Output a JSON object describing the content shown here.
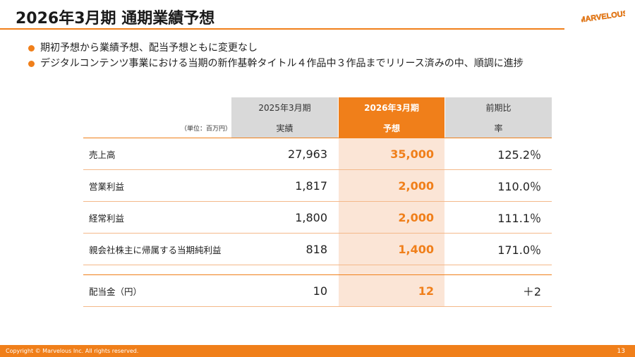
{
  "header": {
    "title": "2026年3月期 通期業績予想",
    "logo_text": "MARVELOUS"
  },
  "bullets": [
    "期初予想から業績予想、配当予想ともに変更なし",
    "デジタルコンテンツ事業における当期の新作基幹タイトル４作品中３作品までリリース済みの中、順調に進捗"
  ],
  "table": {
    "unit_label": "（単位：百万円）",
    "columns": [
      {
        "period": "2025年3月期",
        "sub": "実績"
      },
      {
        "period": "2026年3月期",
        "sub": "予想"
      },
      {
        "period": "前期比",
        "sub": "率"
      }
    ],
    "rows": [
      {
        "label": "売上高",
        "actual": "27,963",
        "forecast": "35,000",
        "ratio": "125.2％"
      },
      {
        "label": "営業利益",
        "actual": "1,817",
        "forecast": "2,000",
        "ratio": "110.0％"
      },
      {
        "label": "経常利益",
        "actual": "1,800",
        "forecast": "2,000",
        "ratio": "111.1％"
      },
      {
        "label": "親会社株主に帰属する当期純利益",
        "actual": "818",
        "forecast": "1,400",
        "ratio": "171.0％"
      }
    ],
    "dividend": {
      "label": "配当金（円）",
      "actual": "10",
      "forecast": "12",
      "ratio": "＋2"
    }
  },
  "footer": {
    "copyright": "Copyright © Marvelous Inc. All rights reserved.",
    "page": "13"
  },
  "colors": {
    "accent": "#f07f1a",
    "accent_light": "#fbe5d6",
    "header_gray": "#d9d9d9"
  }
}
